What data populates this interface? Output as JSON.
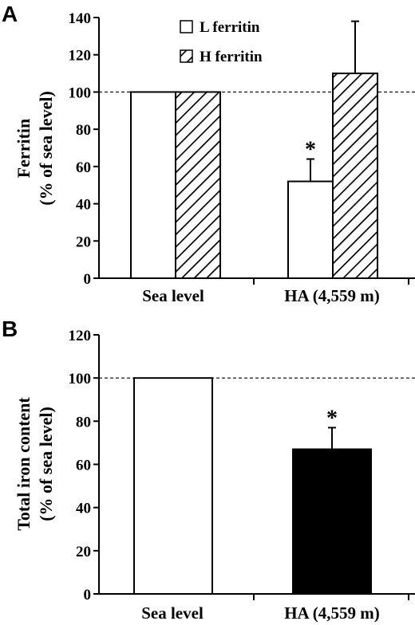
{
  "chart_data": [
    {
      "type": "bar",
      "panel_label": "A",
      "ylabel_lines": [
        "Ferritin",
        "(% of sea level)"
      ],
      "xlabel": "",
      "categories": [
        "Sea level",
        "HA (4,559 m)"
      ],
      "series": [
        {
          "name": "L ferritin",
          "values": [
            100,
            52
          ],
          "error_upper": [
            null,
            12
          ],
          "fill": "white"
        },
        {
          "name": "H ferritin",
          "values": [
            100,
            110
          ],
          "error_upper": [
            null,
            28
          ],
          "fill": "hatched"
        }
      ],
      "yticks": [
        "0",
        "20",
        "40",
        "60",
        "80",
        "100",
        "120",
        "140"
      ],
      "ylim": [
        0,
        140
      ],
      "reference_line": 100,
      "annotations": [
        {
          "text": "*",
          "category": "HA (4,559 m)",
          "series": "L ferritin"
        }
      ],
      "legend_placement": "top-center",
      "grid": false
    },
    {
      "type": "bar",
      "panel_label": "B",
      "ylabel_lines": [
        "Total iron content",
        "(% of sea level)"
      ],
      "xlabel": "",
      "categories": [
        "Sea level",
        "HA (4,559 m)"
      ],
      "series": [
        {
          "values": [
            100,
            67
          ],
          "error_upper": [
            null,
            10
          ],
          "fills": [
            "white",
            "black"
          ]
        }
      ],
      "yticks": [
        "0",
        "20",
        "40",
        "60",
        "80",
        "100",
        "120"
      ],
      "ylim": [
        0,
        120
      ],
      "reference_line": 100,
      "annotations": [
        {
          "text": "*",
          "category": "HA (4,559 m)"
        }
      ],
      "grid": false
    }
  ],
  "colors": {
    "ink": "#000000",
    "background": "#ffffff"
  }
}
